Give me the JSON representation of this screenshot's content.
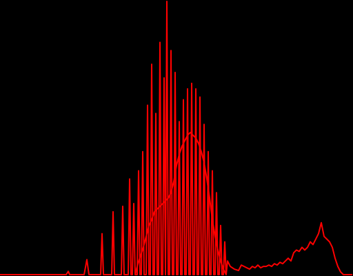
{
  "chart_data": {
    "type": "line",
    "title": "",
    "xlabel": "",
    "ylabel": "",
    "xlim": [
      0,
      511
    ],
    "ylim": [
      0,
      1.0
    ],
    "grid": false,
    "legend": "none",
    "line_color": "#ff0000",
    "background_color": "#000000",
    "series": [
      {
        "values": [
          [
            0,
            0.0
          ],
          [
            96,
            0.0
          ],
          [
            99,
            0.012
          ],
          [
            101,
            0.0
          ],
          [
            122,
            0.0
          ],
          [
            126,
            0.055
          ],
          [
            129,
            0.0
          ],
          [
            146,
            0.0
          ],
          [
            148,
            0.15
          ],
          [
            150,
            0.0
          ],
          [
            162,
            0.0
          ],
          [
            164,
            0.23
          ],
          [
            166,
            0.0
          ],
          [
            176,
            0.0
          ],
          [
            178,
            0.25
          ],
          [
            180,
            0.0
          ],
          [
            186,
            0.0
          ],
          [
            188,
            0.35
          ],
          [
            190,
            0.0
          ],
          [
            192,
            0.0
          ],
          [
            194,
            0.26
          ],
          [
            196,
            0.0
          ],
          [
            199,
            0.0
          ],
          [
            201,
            0.38
          ],
          [
            203,
            0.0
          ],
          [
            205,
            0.0
          ],
          [
            207,
            0.45
          ],
          [
            209,
            0.0
          ],
          [
            212,
            0.0
          ],
          [
            214,
            0.62
          ],
          [
            216,
            0.0
          ],
          [
            218,
            0.0
          ],
          [
            220,
            0.77
          ],
          [
            222,
            0.0
          ],
          [
            224,
            0.0
          ],
          [
            226,
            0.59
          ],
          [
            228,
            0.0
          ],
          [
            230,
            0.0
          ],
          [
            232,
            0.85
          ],
          [
            234,
            0.0
          ],
          [
            236,
            0.0
          ],
          [
            238,
            0.72
          ],
          [
            240,
            0.0
          ],
          [
            240,
            0.0
          ],
          [
            242,
            1.0
          ],
          [
            244,
            0.0
          ],
          [
            246,
            0.0
          ],
          [
            248,
            0.82
          ],
          [
            250,
            0.0
          ],
          [
            252,
            0.0
          ],
          [
            254,
            0.74
          ],
          [
            256,
            0.0
          ],
          [
            258,
            0.0
          ],
          [
            260,
            0.56
          ],
          [
            262,
            0.0
          ],
          [
            264,
            0.0
          ],
          [
            266,
            0.64
          ],
          [
            268,
            0.0
          ],
          [
            270,
            0.0
          ],
          [
            272,
            0.68
          ],
          [
            274,
            0.0
          ],
          [
            276,
            0.0
          ],
          [
            278,
            0.7
          ],
          [
            280,
            0.0
          ],
          [
            282,
            0.0
          ],
          [
            284,
            0.68
          ],
          [
            286,
            0.0
          ],
          [
            288,
            0.0
          ],
          [
            290,
            0.65
          ],
          [
            292,
            0.0
          ],
          [
            294,
            0.0
          ],
          [
            296,
            0.55
          ],
          [
            298,
            0.0
          ],
          [
            300,
            0.0
          ],
          [
            302,
            0.45
          ],
          [
            304,
            0.0
          ],
          [
            306,
            0.0
          ],
          [
            308,
            0.38
          ],
          [
            310,
            0.0
          ],
          [
            312,
            0.0
          ],
          [
            314,
            0.3
          ],
          [
            316,
            0.0
          ],
          [
            318,
            0.0
          ],
          [
            320,
            0.18
          ],
          [
            322,
            0.0
          ],
          [
            324,
            0.0
          ],
          [
            326,
            0.12
          ],
          [
            328,
            0.0
          ],
          [
            330,
            0.05
          ],
          [
            334,
            0.03
          ],
          [
            340,
            0.02
          ],
          [
            346,
            0.015
          ],
          [
            350,
            0.035
          ],
          [
            354,
            0.03
          ],
          [
            358,
            0.025
          ],
          [
            362,
            0.02
          ],
          [
            366,
            0.03
          ],
          [
            370,
            0.025
          ],
          [
            374,
            0.035
          ],
          [
            378,
            0.025
          ],
          [
            382,
            0.03
          ],
          [
            386,
            0.03
          ],
          [
            390,
            0.035
          ],
          [
            394,
            0.03
          ],
          [
            398,
            0.04
          ],
          [
            402,
            0.035
          ],
          [
            406,
            0.045
          ],
          [
            410,
            0.04
          ],
          [
            414,
            0.05
          ],
          [
            418,
            0.06
          ],
          [
            422,
            0.05
          ],
          [
            426,
            0.08
          ],
          [
            430,
            0.09
          ],
          [
            434,
            0.085
          ],
          [
            438,
            0.1
          ],
          [
            442,
            0.09
          ],
          [
            446,
            0.1
          ],
          [
            450,
            0.12
          ],
          [
            454,
            0.11
          ],
          [
            458,
            0.13
          ],
          [
            462,
            0.15
          ],
          [
            466,
            0.19
          ],
          [
            470,
            0.14
          ],
          [
            474,
            0.13
          ],
          [
            478,
            0.12
          ],
          [
            482,
            0.1
          ],
          [
            486,
            0.06
          ],
          [
            490,
            0.03
          ],
          [
            494,
            0.01
          ],
          [
            498,
            0.0
          ],
          [
            511,
            0.0
          ]
        ]
      },
      {
        "values": [
          [
            196,
            0.0
          ],
          [
            200,
            0.04
          ],
          [
            204,
            0.07
          ],
          [
            208,
            0.1
          ],
          [
            212,
            0.14
          ],
          [
            216,
            0.18
          ],
          [
            220,
            0.2
          ],
          [
            224,
            0.23
          ],
          [
            228,
            0.24
          ],
          [
            232,
            0.25
          ],
          [
            236,
            0.26
          ],
          [
            240,
            0.27
          ],
          [
            244,
            0.28
          ],
          [
            248,
            0.3
          ],
          [
            252,
            0.34
          ],
          [
            256,
            0.4
          ],
          [
            260,
            0.44
          ],
          [
            264,
            0.47
          ],
          [
            268,
            0.49
          ],
          [
            272,
            0.51
          ],
          [
            276,
            0.52
          ],
          [
            280,
            0.51
          ],
          [
            284,
            0.5
          ],
          [
            288,
            0.48
          ],
          [
            292,
            0.45
          ],
          [
            296,
            0.41
          ],
          [
            300,
            0.35
          ],
          [
            304,
            0.28
          ],
          [
            308,
            0.2
          ],
          [
            312,
            0.14
          ],
          [
            316,
            0.09
          ],
          [
            320,
            0.05
          ],
          [
            324,
            0.02
          ],
          [
            328,
            0.0
          ]
        ]
      }
    ]
  }
}
